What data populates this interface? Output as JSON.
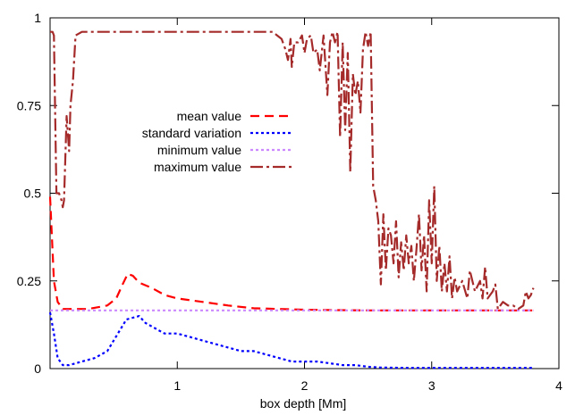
{
  "chart_data": {
    "type": "line",
    "title": "",
    "xlabel": "box depth [Mm]",
    "ylabel": "",
    "xlim": [
      0,
      4
    ],
    "ylim": [
      0,
      1
    ],
    "xticks": [
      1,
      2,
      3,
      4
    ],
    "yticks": [
      0,
      0.25,
      0.5,
      0.75,
      1
    ],
    "ytick_labels": [
      "0",
      "0.25",
      "0.5",
      "0.75",
      "1"
    ],
    "grid": false,
    "legend_position": "upper-center",
    "series": [
      {
        "name": "mean value",
        "color": "#ff0000",
        "dash": "dashed",
        "x": [
          0.0,
          0.03,
          0.06,
          0.1,
          0.15,
          0.3,
          0.45,
          0.52,
          0.57,
          0.61,
          0.65,
          0.7,
          0.8,
          0.9,
          1.0,
          1.2,
          1.4,
          1.6,
          1.8,
          2.0,
          2.2,
          2.5,
          2.8,
          3.1,
          3.4,
          3.8
        ],
        "y": [
          0.49,
          0.25,
          0.19,
          0.17,
          0.17,
          0.17,
          0.18,
          0.2,
          0.24,
          0.27,
          0.265,
          0.245,
          0.23,
          0.21,
          0.2,
          0.19,
          0.18,
          0.172,
          0.17,
          0.168,
          0.167,
          0.166,
          0.166,
          0.166,
          0.166,
          0.166
        ]
      },
      {
        "name": "standard variation",
        "color": "#0000ff",
        "dash": "dotted",
        "x": [
          0.0,
          0.03,
          0.06,
          0.1,
          0.15,
          0.25,
          0.35,
          0.45,
          0.5,
          0.55,
          0.6,
          0.65,
          0.7,
          0.75,
          0.8,
          0.85,
          0.9,
          1.0,
          1.1,
          1.2,
          1.3,
          1.4,
          1.5,
          1.6,
          1.7,
          1.8,
          1.9,
          2.0,
          2.1,
          2.2,
          2.3,
          2.4,
          2.5,
          2.6,
          2.8,
          3.0,
          3.2,
          3.5,
          3.8
        ],
        "y": [
          0.16,
          0.1,
          0.03,
          0.01,
          0.01,
          0.02,
          0.03,
          0.05,
          0.08,
          0.11,
          0.14,
          0.145,
          0.15,
          0.13,
          0.12,
          0.11,
          0.1,
          0.1,
          0.09,
          0.08,
          0.07,
          0.06,
          0.05,
          0.05,
          0.04,
          0.03,
          0.02,
          0.02,
          0.02,
          0.015,
          0.01,
          0.01,
          0.005,
          0.003,
          0.002,
          0.002,
          0.002,
          0.002,
          0.002
        ]
      },
      {
        "name": "minimum value",
        "color": "#cc88ff",
        "dash": "dotted",
        "x": [
          0.0,
          3.8
        ],
        "y": [
          0.166,
          0.166
        ]
      },
      {
        "name": "maximum value",
        "color": "#a52a2a",
        "dash": "dash-dot",
        "x": [
          0.0,
          0.02,
          0.03,
          0.05,
          0.07,
          0.09,
          0.1,
          0.11,
          0.13,
          0.15,
          0.16,
          0.18,
          0.2,
          0.25,
          0.3,
          0.5,
          1.0,
          1.5,
          1.75,
          1.82,
          1.85,
          1.87,
          1.89,
          1.9,
          1.92,
          1.95,
          1.98,
          2.0,
          2.02,
          2.05,
          2.07,
          2.1,
          2.12,
          2.15,
          2.18,
          2.2,
          2.22,
          2.24,
          2.26,
          2.28,
          2.3,
          2.32,
          2.34,
          2.36,
          2.38,
          2.4,
          2.42,
          2.44,
          2.46,
          2.48,
          2.5,
          2.52,
          2.54,
          2.56,
          2.58,
          2.6,
          2.62,
          2.64,
          2.66,
          2.68,
          2.7,
          2.72,
          2.74,
          2.76,
          2.78,
          2.8,
          2.82,
          2.84,
          2.86,
          2.88,
          2.9,
          2.92,
          2.94,
          2.96,
          2.98,
          3.0,
          3.02,
          3.04,
          3.06,
          3.08,
          3.1,
          3.12,
          3.14,
          3.16,
          3.18,
          3.2,
          3.24,
          3.28,
          3.3,
          3.34,
          3.38,
          3.4,
          3.42,
          3.44,
          3.48,
          3.5,
          3.52,
          3.56,
          3.6,
          3.64,
          3.68,
          3.72,
          3.74,
          3.76,
          3.78,
          3.8
        ],
        "y": [
          0.96,
          0.96,
          0.95,
          0.5,
          0.5,
          0.48,
          0.46,
          0.48,
          0.72,
          0.62,
          0.75,
          0.82,
          0.95,
          0.96,
          0.96,
          0.96,
          0.96,
          0.96,
          0.96,
          0.94,
          0.91,
          0.88,
          0.94,
          0.86,
          0.93,
          0.93,
          0.95,
          0.9,
          0.94,
          0.95,
          0.9,
          0.91,
          0.85,
          0.95,
          0.78,
          0.93,
          0.96,
          0.93,
          0.96,
          0.66,
          0.93,
          0.68,
          0.9,
          0.56,
          0.84,
          0.78,
          0.82,
          0.73,
          0.91,
          0.96,
          0.92,
          0.96,
          0.52,
          0.48,
          0.42,
          0.24,
          0.44,
          0.28,
          0.4,
          0.38,
          0.3,
          0.42,
          0.26,
          0.36,
          0.28,
          0.38,
          0.3,
          0.35,
          0.25,
          0.34,
          0.44,
          0.28,
          0.38,
          0.22,
          0.48,
          0.3,
          0.52,
          0.25,
          0.35,
          0.22,
          0.3,
          0.22,
          0.32,
          0.2,
          0.26,
          0.22,
          0.25,
          0.2,
          0.28,
          0.22,
          0.25,
          0.2,
          0.29,
          0.2,
          0.22,
          0.24,
          0.17,
          0.19,
          0.18,
          0.18,
          0.17,
          0.18,
          0.22,
          0.2,
          0.21,
          0.23
        ]
      }
    ]
  }
}
